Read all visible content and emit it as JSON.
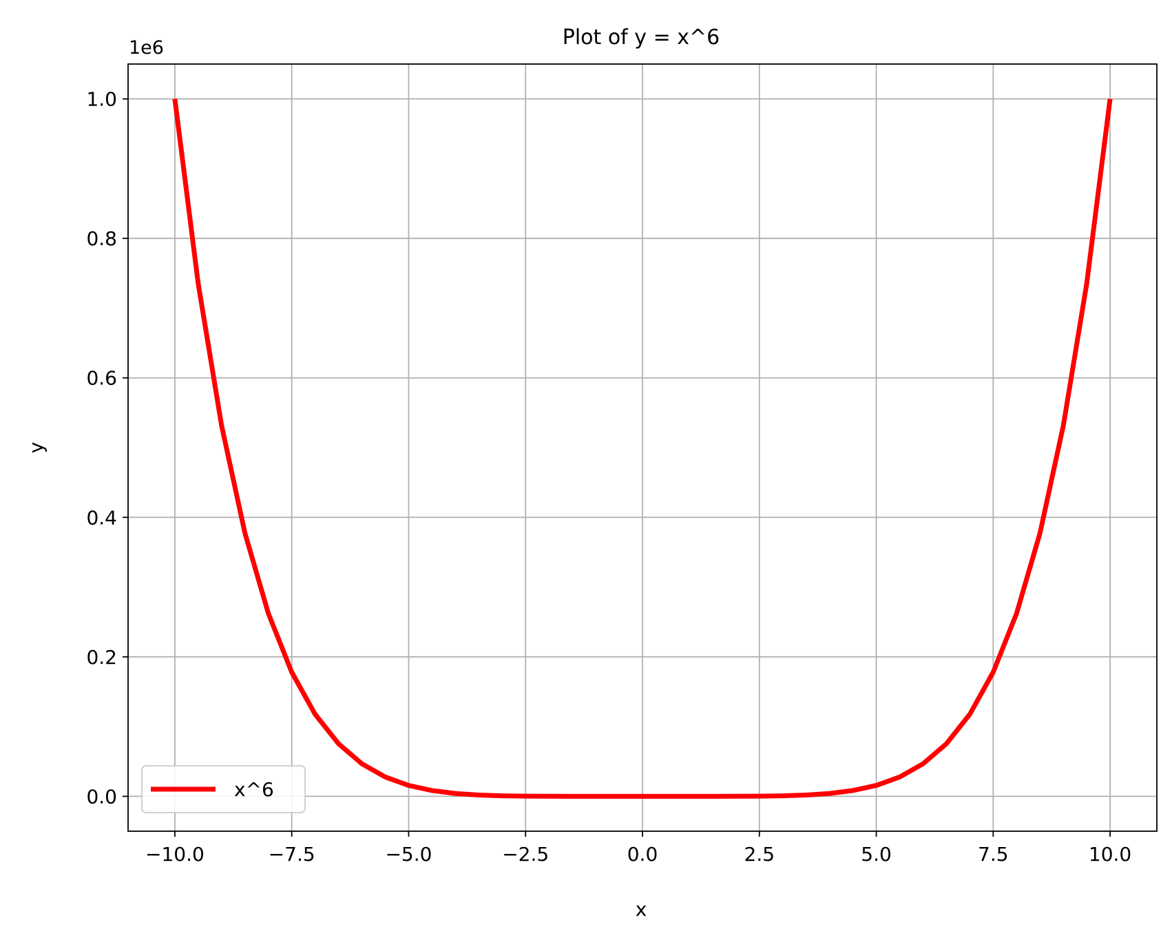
{
  "chart_data": {
    "type": "line",
    "title": "Plot of y = x^6",
    "xlabel": "x",
    "ylabel": "y",
    "y_offset_label": "1e6",
    "y_scale_factor": 1000000,
    "xlim": [
      -11,
      11
    ],
    "ylim": [
      -50000,
      1050000
    ],
    "xticks": [
      -10.0,
      -7.5,
      -5.0,
      -2.5,
      0.0,
      2.5,
      5.0,
      7.5,
      10.0
    ],
    "xtick_labels": [
      "−10.0",
      "−7.5",
      "−5.0",
      "−2.5",
      "0.0",
      "2.5",
      "5.0",
      "7.5",
      "10.0"
    ],
    "yticks": [
      0,
      200000,
      400000,
      600000,
      800000,
      1000000
    ],
    "ytick_labels": [
      "0.0",
      "0.2",
      "0.4",
      "0.6",
      "0.8",
      "1.0"
    ],
    "grid": true,
    "legend_position": "lower-left",
    "series": [
      {
        "name": "x^6",
        "color": "#ff0000",
        "x": [
          -10,
          -9.5,
          -9,
          -8.5,
          -8,
          -7.5,
          -7,
          -6.5,
          -6,
          -5.5,
          -5,
          -4.5,
          -4,
          -3.5,
          -3,
          -2.5,
          -2,
          -1.5,
          -1,
          -0.5,
          0,
          0.5,
          1,
          1.5,
          2,
          2.5,
          3,
          3.5,
          4,
          4.5,
          5,
          5.5,
          6,
          6.5,
          7,
          7.5,
          8,
          8.5,
          9,
          9.5,
          10
        ],
        "y": [
          1000000,
          735092,
          531441,
          377150,
          262144,
          177979,
          117649,
          75419,
          46656,
          27681,
          15625,
          8304,
          4096,
          1838,
          729,
          244,
          64,
          11,
          1,
          0.016,
          0,
          0.016,
          1,
          11,
          64,
          244,
          729,
          1838,
          4096,
          8304,
          15625,
          27681,
          46656,
          75419,
          117649,
          177979,
          262144,
          377150,
          531441,
          735092,
          1000000
        ]
      }
    ]
  }
}
